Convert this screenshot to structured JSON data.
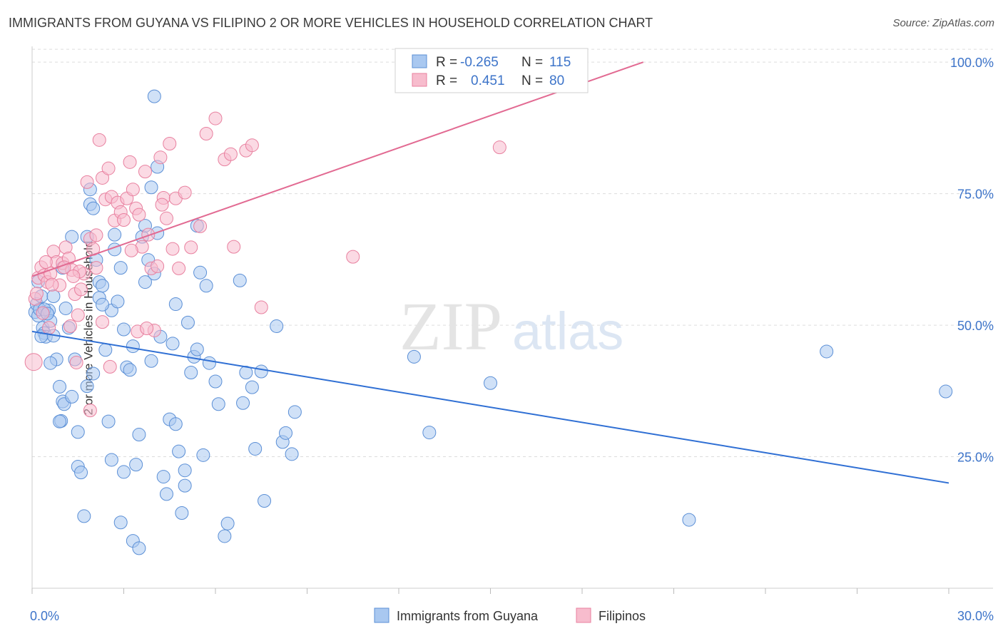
{
  "header": {
    "title": "IMMIGRANTS FROM GUYANA VS FILIPINO 2 OR MORE VEHICLES IN HOUSEHOLD CORRELATION CHART",
    "source": "Source: ZipAtlas.com"
  },
  "watermark": {
    "zip": "ZIP",
    "atlas": "atlas"
  },
  "colors": {
    "blue_fill": "#a9c8f0",
    "blue_stroke": "#5b8fd6",
    "blue_line": "#2f6fd4",
    "pink_fill": "#f7bccd",
    "pink_stroke": "#e8809f",
    "pink_line": "#e26a92",
    "axis_text_blue": "#3d74c9",
    "grid": "#dddddd"
  },
  "legend_box": {
    "rows": [
      {
        "r_label": "R =",
        "r_value": "-0.265",
        "n_label": "N =",
        "n_value": "115",
        "color": "blue"
      },
      {
        "r_label": "R =",
        "r_value": "0.451",
        "n_label": "N =",
        "n_value": "80",
        "color": "pink"
      }
    ]
  },
  "chart_data": {
    "type": "scatter",
    "title": "IMMIGRANTS FROM GUYANA VS FILIPINO 2 OR MORE VEHICLES IN HOUSEHOLD CORRELATION CHART",
    "xlabel": "",
    "ylabel": "2 or more Vehicles in Household",
    "xlim": [
      0,
      30
    ],
    "ylim": [
      0,
      103
    ],
    "x_tick_labels": [
      "0.0%",
      "30.0%"
    ],
    "y_tick_labels": [
      "25.0%",
      "50.0%",
      "75.0%",
      "100.0%"
    ],
    "y_ticks": [
      25,
      50,
      75,
      100
    ],
    "grid": true,
    "legend_position": "bottom",
    "series": [
      {
        "name": "Immigrants from Guyana",
        "color": "blue",
        "trend": {
          "x": [
            0,
            30
          ],
          "y": [
            48.8,
            20.0
          ]
        },
        "points": [
          [
            0.1,
            52.5
          ],
          [
            0.15,
            54
          ],
          [
            0.2,
            51.8
          ],
          [
            0.25,
            53
          ],
          [
            0.3,
            55.5
          ],
          [
            0.35,
            49.5
          ],
          [
            0.4,
            48.5
          ],
          [
            0.45,
            47.8
          ],
          [
            0.5,
            52.2
          ],
          [
            0.55,
            52.8
          ],
          [
            0.6,
            50.8
          ],
          [
            0.7,
            48
          ],
          [
            0.8,
            43.5
          ],
          [
            0.9,
            38.3
          ],
          [
            1.0,
            35.5
          ],
          [
            1.05,
            35
          ],
          [
            0.95,
            31.8
          ],
          [
            1.1,
            53.2
          ],
          [
            1.2,
            49.5
          ],
          [
            1.4,
            43.5
          ],
          [
            1.5,
            29.7
          ],
          [
            1.5,
            23.1
          ],
          [
            1.7,
            13.7
          ],
          [
            1.8,
            38.4
          ],
          [
            1.9,
            75.8
          ],
          [
            1.9,
            73
          ],
          [
            2.0,
            72.2
          ],
          [
            1.8,
            66.8
          ],
          [
            2.2,
            58.2
          ],
          [
            2.3,
            57.5
          ],
          [
            2.2,
            55.2
          ],
          [
            2.1,
            62.4
          ],
          [
            2.4,
            45.3
          ],
          [
            2.5,
            31.7
          ],
          [
            2.6,
            52.8
          ],
          [
            2.7,
            64.4
          ],
          [
            2.7,
            67.2
          ],
          [
            2.8,
            54.5
          ],
          [
            2.9,
            60.9
          ],
          [
            3.0,
            49.2
          ],
          [
            3.1,
            42
          ],
          [
            3.2,
            41.5
          ],
          [
            3.3,
            46
          ],
          [
            3.4,
            23.5
          ],
          [
            3.5,
            29.2
          ],
          [
            3.6,
            66.8
          ],
          [
            3.7,
            58.2
          ],
          [
            3.8,
            62.4
          ],
          [
            3.9,
            43.2
          ],
          [
            4.0,
            59.8
          ],
          [
            4.1,
            67.5
          ],
          [
            4.2,
            47.8
          ],
          [
            4.3,
            21.2
          ],
          [
            4.4,
            17.9
          ],
          [
            4.5,
            32.1
          ],
          [
            4.6,
            46.5
          ],
          [
            4.7,
            31.2
          ],
          [
            4.8,
            26
          ],
          [
            4.9,
            14.3
          ],
          [
            5.0,
            19.5
          ],
          [
            5.0,
            22.4
          ],
          [
            5.1,
            50.5
          ],
          [
            5.2,
            41
          ],
          [
            5.3,
            44
          ],
          [
            5.4,
            45.4
          ],
          [
            5.5,
            60
          ],
          [
            5.6,
            25.3
          ],
          [
            5.8,
            42.8
          ],
          [
            6.0,
            39.3
          ],
          [
            6.1,
            35
          ],
          [
            6.3,
            9.9
          ],
          [
            6.4,
            12.3
          ],
          [
            6.8,
            58.5
          ],
          [
            7.0,
            41
          ],
          [
            7.2,
            38.2
          ],
          [
            7.3,
            26.5
          ],
          [
            7.5,
            41.2
          ],
          [
            7.6,
            16.6
          ],
          [
            8.0,
            49.8
          ],
          [
            8.2,
            27.8
          ],
          [
            8.3,
            29.5
          ],
          [
            8.5,
            25.5
          ],
          [
            8.6,
            33.5
          ],
          [
            4.1,
            80.1
          ],
          [
            3.9,
            76.2
          ],
          [
            4.7,
            54
          ],
          [
            5.4,
            68.9
          ],
          [
            0.3,
            47.9
          ],
          [
            0.9,
            31.7
          ],
          [
            1.6,
            22
          ],
          [
            2.9,
            12.5
          ],
          [
            3.3,
            9
          ],
          [
            3.5,
            7.6
          ],
          [
            0.4,
            53
          ],
          [
            0.5,
            52.2
          ],
          [
            1.3,
            66.8
          ],
          [
            4.0,
            93.5
          ],
          [
            12.5,
            44
          ],
          [
            13.0,
            29.6
          ],
          [
            15.0,
            39
          ],
          [
            21.5,
            13
          ],
          [
            26.0,
            45
          ],
          [
            29.9,
            37.4
          ],
          [
            0.2,
            58.3
          ],
          [
            0.7,
            55.5
          ],
          [
            1.0,
            60.9
          ],
          [
            2.6,
            24.4
          ],
          [
            3.0,
            22.1
          ],
          [
            2.0,
            40.8
          ],
          [
            3.7,
            68.9
          ],
          [
            5.7,
            57.5
          ],
          [
            6.9,
            35.2
          ],
          [
            0.6,
            42.8
          ],
          [
            1.3,
            36.4
          ],
          [
            2.3,
            53.9
          ]
        ]
      },
      {
        "name": "Filipinos",
        "color": "pink",
        "trend": {
          "x": [
            0,
            20
          ],
          "y": [
            59.3,
            100.0
          ]
        },
        "points": [
          [
            0.05,
            43
          ],
          [
            0.1,
            55
          ],
          [
            0.2,
            59
          ],
          [
            0.3,
            61
          ],
          [
            0.4,
            59.5
          ],
          [
            0.5,
            58.2
          ],
          [
            0.6,
            59.8
          ],
          [
            0.7,
            64
          ],
          [
            0.8,
            62
          ],
          [
            0.9,
            57.6
          ],
          [
            1.0,
            61.8
          ],
          [
            1.1,
            64.8
          ],
          [
            1.2,
            62.7
          ],
          [
            1.3,
            60.5
          ],
          [
            1.4,
            55.9
          ],
          [
            1.5,
            51.9
          ],
          [
            1.6,
            56.8
          ],
          [
            1.7,
            59.8
          ],
          [
            1.8,
            77.2
          ],
          [
            1.9,
            66.4
          ],
          [
            2.0,
            64.5
          ],
          [
            2.1,
            60.9
          ],
          [
            2.2,
            85.2
          ],
          [
            2.3,
            78
          ],
          [
            2.4,
            73.9
          ],
          [
            2.5,
            79.8
          ],
          [
            2.6,
            74.4
          ],
          [
            2.7,
            69.9
          ],
          [
            2.8,
            73.3
          ],
          [
            2.9,
            71.5
          ],
          [
            3.0,
            70
          ],
          [
            3.1,
            74.1
          ],
          [
            3.2,
            81
          ],
          [
            3.3,
            75.8
          ],
          [
            3.4,
            72.2
          ],
          [
            3.5,
            71
          ],
          [
            3.6,
            64.9
          ],
          [
            3.7,
            79.2
          ],
          [
            3.8,
            67.2
          ],
          [
            3.9,
            60.8
          ],
          [
            4.0,
            49
          ],
          [
            4.1,
            61.2
          ],
          [
            4.2,
            81.9
          ],
          [
            4.3,
            74.2
          ],
          [
            4.4,
            70.3
          ],
          [
            4.5,
            84.5
          ],
          [
            4.6,
            64.5
          ],
          [
            4.7,
            74.1
          ],
          [
            4.8,
            60.8
          ],
          [
            5.0,
            75.2
          ],
          [
            5.2,
            64.8
          ],
          [
            5.5,
            68.8
          ],
          [
            5.7,
            86.4
          ],
          [
            6.0,
            89.3
          ],
          [
            6.3,
            81.5
          ],
          [
            6.5,
            82.5
          ],
          [
            6.6,
            64.9
          ],
          [
            7.0,
            83.2
          ],
          [
            7.2,
            84.2
          ],
          [
            7.5,
            53.4
          ],
          [
            10.5,
            63
          ],
          [
            15.3,
            83.8
          ],
          [
            0.15,
            56
          ],
          [
            0.35,
            52.3
          ],
          [
            0.55,
            49.5
          ],
          [
            1.25,
            49.8
          ],
          [
            1.45,
            42.9
          ],
          [
            1.9,
            33.8
          ],
          [
            2.3,
            50.6
          ],
          [
            2.55,
            42.1
          ],
          [
            3.45,
            48.8
          ],
          [
            3.75,
            49.4
          ],
          [
            0.45,
            62
          ],
          [
            0.65,
            57.7
          ],
          [
            1.05,
            61
          ],
          [
            1.55,
            60.2
          ],
          [
            2.1,
            67.1
          ],
          [
            3.25,
            64.2
          ],
          [
            4.25,
            72.9
          ],
          [
            1.35,
            59.3
          ]
        ]
      }
    ]
  }
}
